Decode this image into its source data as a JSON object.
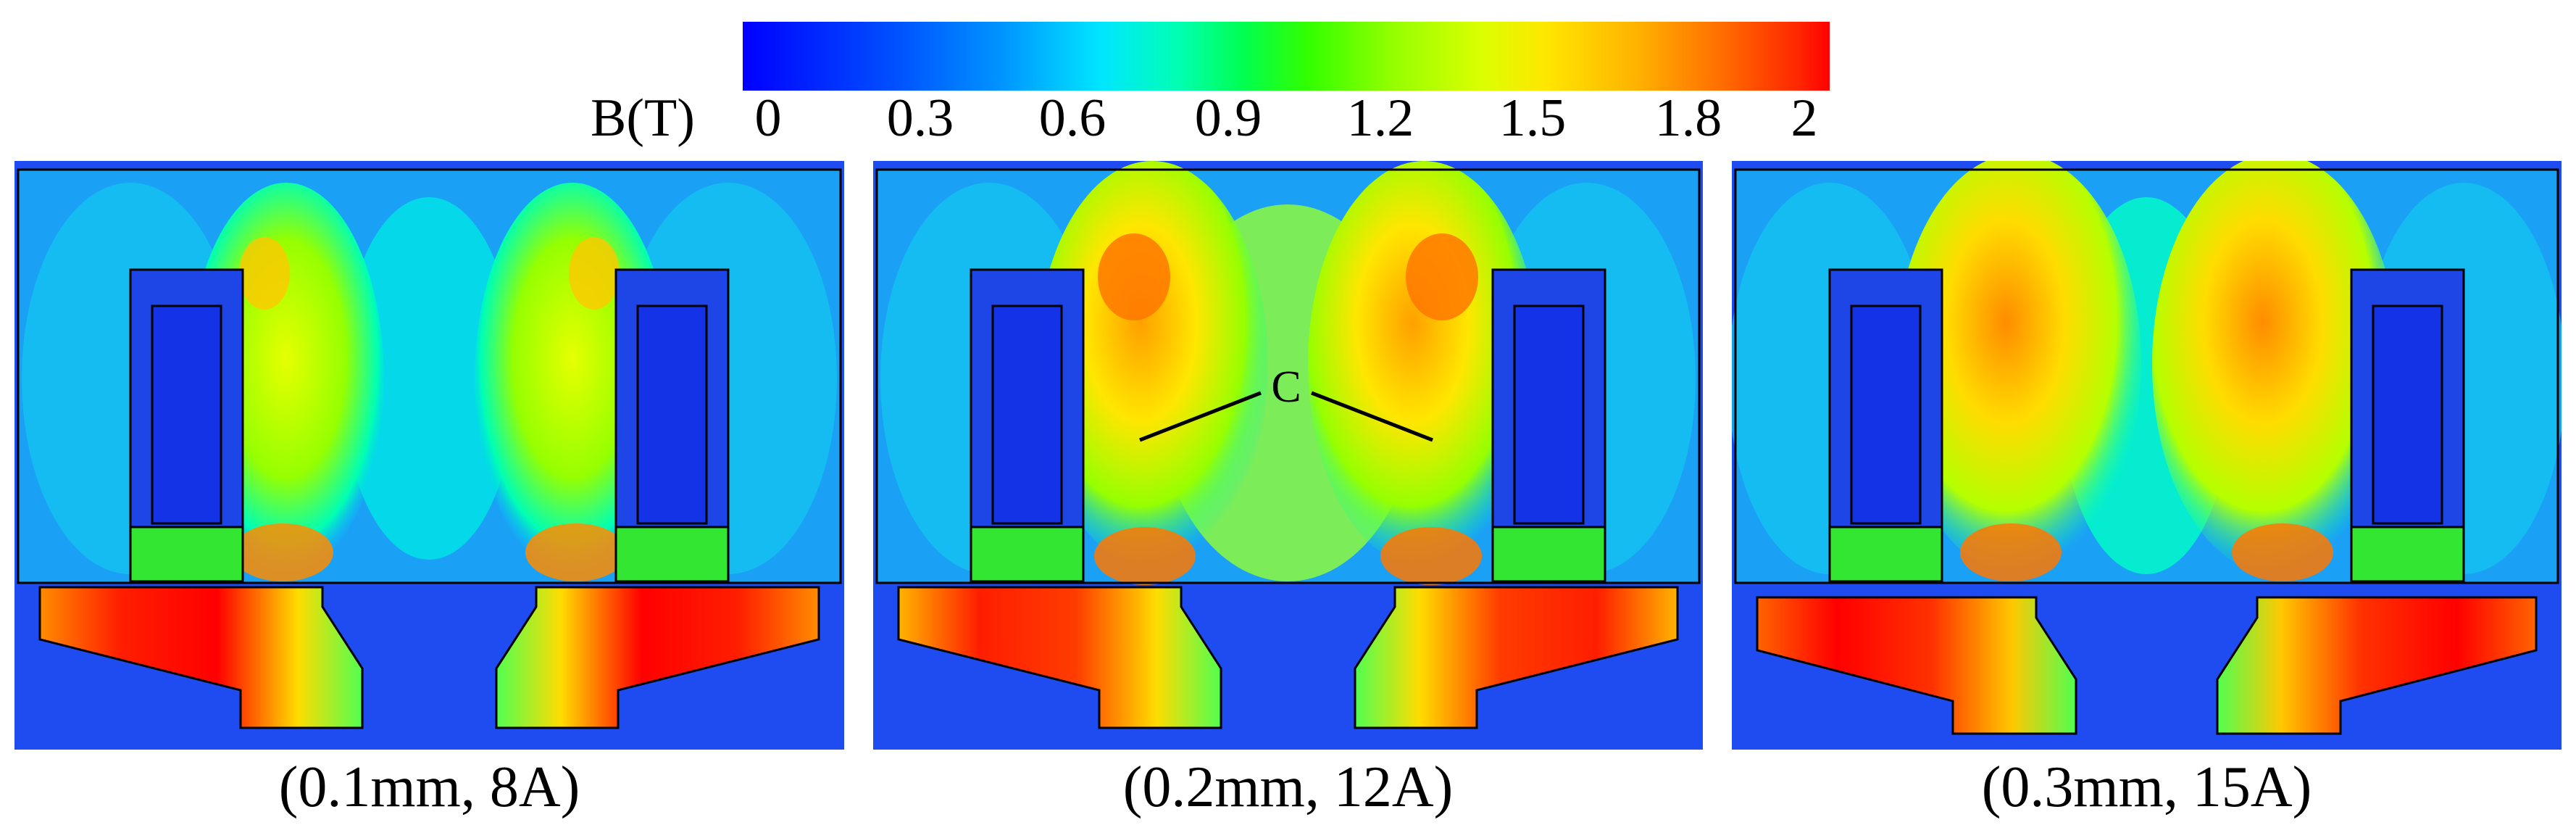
{
  "colorbar": {
    "title": "B(T)",
    "ticks": [
      "0",
      "0.3",
      "0.6",
      "0.9",
      "1.2",
      "1.5",
      "1.8",
      "2"
    ],
    "min": 0,
    "max": 2,
    "colormap": [
      "#0000ff",
      "#0096ff",
      "#00ffff",
      "#00ff50",
      "#96ff00",
      "#ffff00",
      "#ff9600",
      "#ff0000"
    ]
  },
  "panels": [
    {
      "caption": "(0.1mm, 8A)"
    },
    {
      "caption": "(0.2mm, 12A)",
      "annotation": "C"
    },
    {
      "caption": "(0.3mm, 15A)"
    }
  ]
}
